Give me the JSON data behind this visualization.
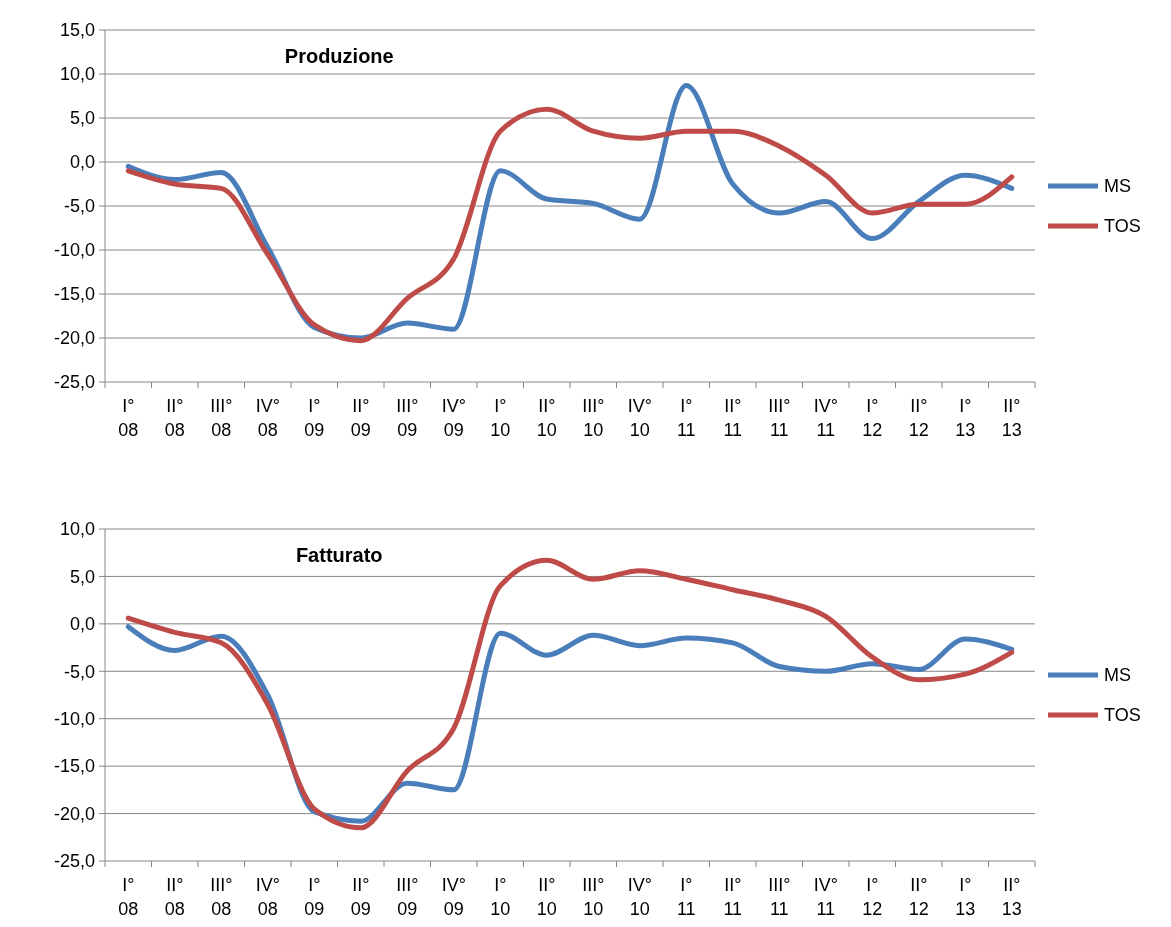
{
  "chart_data": [
    {
      "type": "line",
      "title": "Produzione",
      "categories": [
        "I° 08",
        "II° 08",
        "III° 08",
        "IV° 08",
        "I° 09",
        "II° 09",
        "III° 09",
        "IV° 09",
        "I° 10",
        "II° 10",
        "III° 10",
        "IV° 10",
        "I° 11",
        "II° 11",
        "III° 11",
        "IV° 11",
        "I° 12",
        "II° 12",
        "I° 13",
        "II° 13"
      ],
      "series": [
        {
          "name": "MS",
          "color": "#4a7ebb",
          "values": [
            -0.5,
            -2,
            -1.2,
            -9.7,
            -18.8,
            -20,
            -18.3,
            -19,
            -1,
            -4.2,
            -4.7,
            -6.5,
            8.7,
            -2.5,
            -5.8,
            -4.5,
            -8.7,
            -4.5,
            -1.5,
            -3
          ]
        },
        {
          "name": "TOS",
          "color": "#be4b48",
          "values": [
            -1,
            -2.5,
            -3,
            -10.5,
            -18.5,
            -20.3,
            -15.5,
            -11,
            3.5,
            6,
            3.5,
            2.7,
            3.5,
            3.5,
            1.8,
            -1.5,
            -5.8,
            -4.8,
            -4.8,
            -1.7
          ]
        }
      ],
      "ylim": [
        -25,
        15
      ],
      "yticks": [
        {
          "value": -25,
          "label": "-25,0"
        },
        {
          "value": -20,
          "label": "-20,0"
        },
        {
          "value": -15,
          "label": "-15,0"
        },
        {
          "value": -10,
          "label": "-10,0"
        },
        {
          "value": -5,
          "label": "-5,0"
        },
        {
          "value": 0,
          "label": "0,0"
        },
        {
          "value": 5,
          "label": "5,0"
        },
        {
          "value": 10,
          "label": "10,0"
        },
        {
          "value": 15,
          "label": "15,0"
        }
      ],
      "grid": "y",
      "legend": "right",
      "marker": "none",
      "line_style": "solid"
    },
    {
      "type": "line",
      "title": "Fatturato",
      "categories": [
        "I° 08",
        "II° 08",
        "III° 08",
        "IV° 08",
        "I° 09",
        "II° 09",
        "III° 09",
        "IV° 09",
        "I° 10",
        "II° 10",
        "III° 10",
        "IV° 10",
        "I° 11",
        "II° 11",
        "III° 11",
        "IV° 11",
        "I° 12",
        "II° 12",
        "I° 13",
        "II° 13"
      ],
      "series": [
        {
          "name": "MS",
          "color": "#4a7ebb",
          "values": [
            -0.3,
            -2.8,
            -1.3,
            -7.5,
            -19.8,
            -20.8,
            -16.8,
            -17.5,
            -1,
            -3.3,
            -1.2,
            -2.3,
            -1.5,
            -2,
            -4.5,
            -5,
            -4.2,
            -4.8,
            -1.6,
            -2.7
          ]
        },
        {
          "name": "TOS",
          "color": "#be4b48",
          "values": [
            0.6,
            -0.9,
            -2,
            -8.5,
            -19.5,
            -21.5,
            -15.5,
            -11,
            4,
            6.7,
            4.7,
            5.6,
            4.7,
            3.6,
            2.5,
            0.8,
            -3.5,
            -5.9,
            -5.3,
            -3
          ]
        }
      ],
      "ylim": [
        -25,
        10
      ],
      "yticks": [
        {
          "value": -25,
          "label": "-25,0"
        },
        {
          "value": -20,
          "label": "-20,0"
        },
        {
          "value": -15,
          "label": "-15,0"
        },
        {
          "value": -10,
          "label": "-10,0"
        },
        {
          "value": -5,
          "label": "-5,0"
        },
        {
          "value": 0,
          "label": "0,0"
        },
        {
          "value": 5,
          "label": "5,0"
        },
        {
          "value": 10,
          "label": "10,0"
        }
      ],
      "grid": "y",
      "legend": "right",
      "marker": "none",
      "line_style": "solid"
    }
  ]
}
